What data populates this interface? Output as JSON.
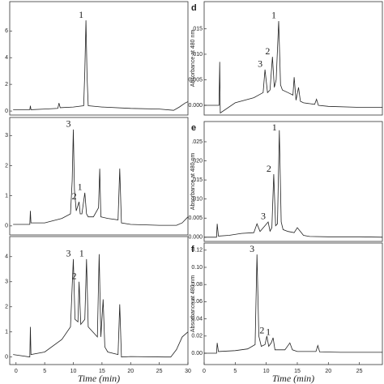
{
  "chart_data": [
    {
      "type": "line",
      "xlim": [
        -1.1,
        30
      ],
      "ylim": [
        -0.3,
        8.2
      ],
      "yticks": [
        0,
        2,
        4,
        6
      ],
      "x": [
        -0.5,
        2.4,
        2.5,
        2.6,
        5,
        7.3,
        7.5,
        7.7,
        10,
        11.8,
        12.0,
        12.2,
        12.4,
        12.6,
        15,
        20,
        25,
        27.5,
        28.5,
        29.5,
        30
      ],
      "values": [
        0.1,
        0.1,
        0.4,
        0.1,
        0.15,
        0.2,
        0.6,
        0.25,
        0.3,
        0.4,
        3.0,
        6.8,
        2.5,
        0.4,
        0.3,
        0.2,
        0.15,
        0.05,
        0.3,
        0.6,
        0.7
      ],
      "color": "#222222",
      "peak_labels": [
        {
          "label": "1",
          "x": 12.2
        }
      ]
    },
    {
      "type": "line",
      "xlim": [
        -1.1,
        30
      ],
      "ylim": [
        -0.3,
        3.6
      ],
      "yticks": [
        0,
        1,
        2,
        3
      ],
      "x": [
        -0.5,
        2.4,
        2.5,
        2.6,
        5,
        8,
        9.5,
        9.8,
        10.0,
        10.2,
        10.5,
        11,
        11.2,
        11.5,
        12,
        12.3,
        12.6,
        13.5,
        14.4,
        14.6,
        14.8,
        16,
        17.8,
        18.1,
        18.4,
        20,
        25,
        28,
        29,
        30
      ],
      "values": [
        0.05,
        0.05,
        0.5,
        0.1,
        0.1,
        0.25,
        0.4,
        1.5,
        3.2,
        1.2,
        0.5,
        0.8,
        0.4,
        0.4,
        1.1,
        0.4,
        0.3,
        0.3,
        0.6,
        1.9,
        0.3,
        0.25,
        0.2,
        1.9,
        0.1,
        0.05,
        0.02,
        0.02,
        0.1,
        0.3
      ],
      "color": "#222222",
      "peak_labels": [
        {
          "label": "3",
          "x": 10.0
        },
        {
          "label": "2",
          "x": 11.0
        },
        {
          "label": "1",
          "x": 12.0
        }
      ]
    },
    {
      "type": "line",
      "xlim": [
        -1.1,
        30
      ],
      "ylim": [
        -0.3,
        4.8
      ],
      "yticks": [
        0,
        1,
        2,
        3,
        4
      ],
      "x": [
        -0.5,
        2.4,
        2.5,
        2.6,
        5,
        8,
        9.5,
        10.0,
        10.3,
        10.8,
        11.0,
        11.3,
        12,
        12.3,
        12.6,
        14.2,
        14.5,
        14.8,
        15.2,
        15.5,
        16,
        17.8,
        18.1,
        18.4,
        20,
        26,
        27,
        28,
        29,
        30
      ],
      "values": [
        0.1,
        0.0,
        1.2,
        0.1,
        0.2,
        0.7,
        1.2,
        3.9,
        1.5,
        1.4,
        3.0,
        1.3,
        1.5,
        3.9,
        1.2,
        0.8,
        4.1,
        0.8,
        2.3,
        0.4,
        0.2,
        0.1,
        2.1,
        0.0,
        0.02,
        0.0,
        0.0,
        0.3,
        0.8,
        1.0
      ],
      "color": "#222222",
      "xticks": [
        0,
        5,
        10,
        15,
        20,
        25,
        30
      ],
      "xlabel": "Time (min)",
      "peak_labels": [
        {
          "label": "3",
          "x": 10.0
        },
        {
          "label": "2",
          "x": 11.0
        },
        {
          "label": "1",
          "x": 12.3
        }
      ]
    },
    {
      "type": "line",
      "label": "d",
      "xlim": [
        0,
        28.7
      ],
      "ylim": [
        -0.0019,
        0.0203
      ],
      "yticks": [
        {
          "value": 0,
          "label": "0.000"
        },
        {
          "value": 0.005,
          "label": "0.005"
        },
        {
          "value": 0.01,
          "label": ".010"
        },
        {
          "value": 0.015,
          "label": ".015"
        }
      ],
      "ylabel": "Absorbance at 480 nm",
      "x": [
        0,
        2.4,
        2.5,
        2.6,
        5,
        8,
        9.5,
        9.8,
        10.2,
        10.6,
        11.0,
        11.3,
        11.6,
        12.0,
        12.3,
        12.6,
        13.5,
        14.3,
        14.5,
        14.8,
        15.2,
        15.5,
        16,
        17.8,
        18.1,
        18.4,
        20,
        25,
        28.7
      ],
      "values": [
        0.0,
        0.0,
        0.0085,
        -0.0015,
        0.0005,
        0.0015,
        0.0025,
        0.007,
        0.0025,
        0.003,
        0.0095,
        0.0035,
        0.005,
        0.0165,
        0.004,
        0.003,
        0.0025,
        0.002,
        0.0055,
        0.001,
        0.0035,
        0.0008,
        0.0005,
        0.0002,
        0.0012,
        0.0,
        -0.0002,
        -0.0004,
        -0.0004
      ],
      "color": "#222222",
      "peak_labels": [
        {
          "label": "3",
          "x": 9.8
        },
        {
          "label": "2",
          "x": 11.0
        },
        {
          "label": "1",
          "x": 12.0
        }
      ]
    },
    {
      "type": "line",
      "label": "e",
      "xlim": [
        0,
        28.7
      ],
      "ylim": [
        -0.0011,
        0.0303
      ],
      "yticks": [
        {
          "value": 0,
          "label": "0.000"
        },
        {
          "value": 0.005,
          "label": "0.005"
        },
        {
          "value": 0.01,
          "label": ".010"
        },
        {
          "value": 0.015,
          "label": ".015"
        },
        {
          "value": 0.02,
          "label": ".020"
        },
        {
          "value": 0.025,
          "label": ".025"
        }
      ],
      "ylabel": "Absorbance at 480 nm",
      "x": [
        0,
        2.0,
        2.1,
        2.3,
        4,
        6,
        8,
        8.5,
        9,
        10.3,
        10.6,
        10.9,
        11.2,
        11.5,
        11.8,
        12.1,
        12.4,
        12.7,
        13.5,
        14.5,
        15,
        15.5,
        16,
        17,
        20,
        25,
        28.7
      ],
      "values": [
        0.0,
        0.0,
        0.0035,
        0.0003,
        0.0005,
        0.001,
        0.0012,
        0.0035,
        0.0015,
        0.004,
        0.0016,
        0.0025,
        0.0165,
        0.003,
        0.0035,
        0.028,
        0.004,
        0.002,
        0.0015,
        0.0012,
        0.0025,
        0.0015,
        0.0005,
        0.0002,
        0.0001,
        0.0001,
        0.0
      ],
      "color": "#222222",
      "peak_labels": [
        {
          "label": "3",
          "x": 10.3
        },
        {
          "label": "2",
          "x": 11.2
        },
        {
          "label": "1",
          "x": 12.1
        }
      ]
    },
    {
      "type": "line",
      "label": "f",
      "xlim": [
        0,
        28.7
      ],
      "ylim": [
        -0.0132,
        0.1283
      ],
      "yticks": [
        {
          "value": 0,
          "label": "0.00"
        },
        {
          "value": 0.02,
          "label": "0.02"
        },
        {
          "value": 0.04,
          "label": "0.04"
        },
        {
          "value": 0.06,
          "label": "0.06"
        },
        {
          "value": 0.08,
          "label": "0.08"
        },
        {
          "value": 0.1,
          "label": "0.10"
        },
        {
          "value": 0.12,
          "label": "0.12"
        }
      ],
      "ylabel": "Absorbance at 480 nm",
      "xticks": [
        0,
        5,
        10,
        15,
        20,
        25
      ],
      "xlabel": "Time (min)",
      "x": [
        0,
        2.0,
        2.1,
        2.3,
        5,
        7,
        8.2,
        8.5,
        8.8,
        9.2,
        9.8,
        10.1,
        10.4,
        10.8,
        11.1,
        11.4,
        13,
        13.8,
        14.2,
        15,
        18,
        18.3,
        18.6,
        22,
        28.7
      ],
      "values": [
        0.0,
        0.0,
        0.012,
        0.002,
        0.003,
        0.005,
        0.01,
        0.115,
        0.02,
        0.008,
        0.01,
        0.02,
        0.008,
        0.012,
        0.018,
        0.004,
        0.004,
        0.012,
        0.004,
        0.002,
        0.002,
        0.009,
        0.0015,
        0.001,
        0.001
      ],
      "color": "#222222",
      "peak_labels": [
        {
          "label": "3",
          "x": 8.5
        },
        {
          "label": "2",
          "x": 10.1
        },
        {
          "label": "1",
          "x": 11.1
        }
      ]
    }
  ]
}
